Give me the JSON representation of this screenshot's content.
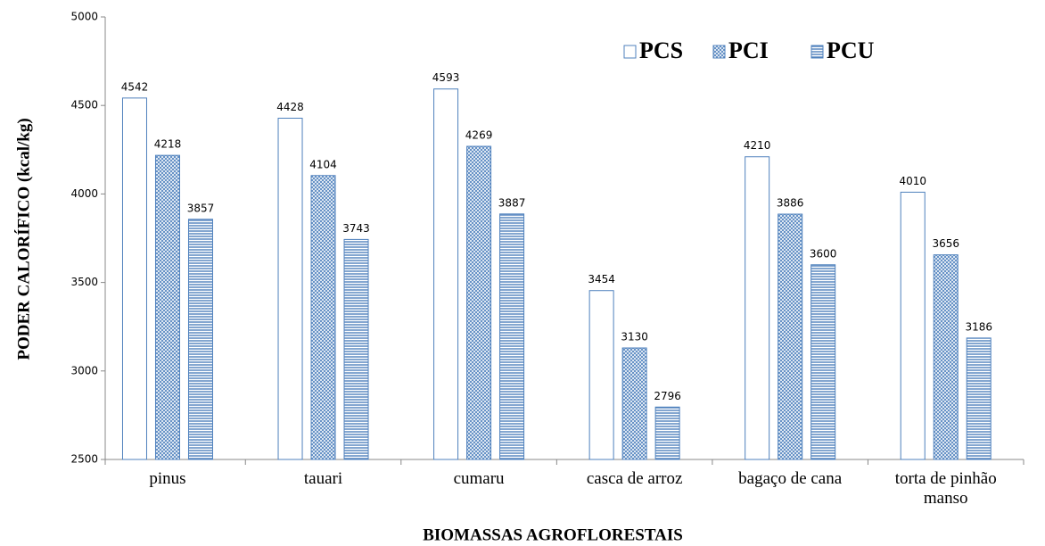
{
  "chart_data": {
    "type": "bar",
    "xlabel": "BIOMASSAS AGROFLORESTAIS",
    "ylabel": "PODER CALORÍFICO (kcal/kg)",
    "categories": [
      "pinus",
      "tauari",
      "cumaru",
      "casca de arroz",
      "bagaço de cana",
      "torta de pinhão manso"
    ],
    "series": [
      {
        "name": "PCS",
        "color": "#4f81bd",
        "values": [
          4542,
          4428,
          4593,
          3454,
          4210,
          4010
        ]
      },
      {
        "name": "PCI",
        "color": "#4f81bd",
        "values": [
          4218,
          4104,
          4269,
          3130,
          3886,
          3656
        ]
      },
      {
        "name": "PCU",
        "color": "#4f81bd",
        "values": [
          3857,
          3743,
          3887,
          2796,
          3600,
          3186
        ]
      }
    ],
    "ylim": [
      2500,
      5000
    ],
    "yticks": [
      2500,
      3000,
      3500,
      4000,
      4500,
      5000
    ]
  }
}
